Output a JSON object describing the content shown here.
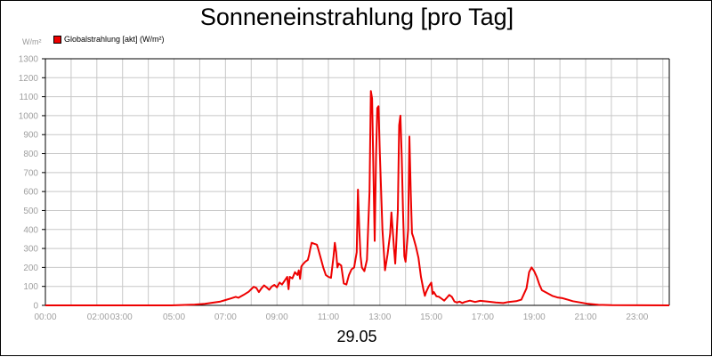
{
  "chart_data": {
    "type": "line",
    "title": "Sonneneinstrahlung [pro Tag]",
    "y_unit": "W/m²",
    "date": "29.05",
    "ylim": [
      0,
      1300
    ],
    "xlim": [
      0,
      24.25
    ],
    "grid": true,
    "legend_position": "top-left",
    "y_ticks": [
      0,
      100,
      200,
      300,
      400,
      500,
      600,
      700,
      800,
      900,
      1000,
      1100,
      1200,
      1300
    ],
    "x_ticks": [
      {
        "value": 0,
        "label": "00:00"
      },
      {
        "value": 2,
        "label": "02:00"
      },
      {
        "value": 3,
        "label": "03:00"
      },
      {
        "value": 5,
        "label": "05:00"
      },
      {
        "value": 7,
        "label": "07:00"
      },
      {
        "value": 9,
        "label": "09:00"
      },
      {
        "value": 11,
        "label": "11:00"
      },
      {
        "value": 13,
        "label": "13:00"
      },
      {
        "value": 15,
        "label": "15:00"
      },
      {
        "value": 17,
        "label": "17:00"
      },
      {
        "value": 19,
        "label": "19:00"
      },
      {
        "value": 21,
        "label": "21:00"
      },
      {
        "value": 23,
        "label": "23:00"
      }
    ],
    "series": [
      {
        "name": "Globalstrahlung [akt] (W/m²)",
        "color": "#ee0000",
        "points": [
          [
            0,
            0
          ],
          [
            4.9,
            0
          ],
          [
            5.3,
            2
          ],
          [
            5.8,
            4
          ],
          [
            6.2,
            8
          ],
          [
            6.5,
            14
          ],
          [
            6.8,
            20
          ],
          [
            7.0,
            28
          ],
          [
            7.2,
            36
          ],
          [
            7.4,
            45
          ],
          [
            7.5,
            40
          ],
          [
            7.7,
            55
          ],
          [
            7.9,
            72
          ],
          [
            8.0,
            85
          ],
          [
            8.1,
            98
          ],
          [
            8.2,
            92
          ],
          [
            8.3,
            70
          ],
          [
            8.4,
            90
          ],
          [
            8.5,
            105
          ],
          [
            8.6,
            95
          ],
          [
            8.7,
            82
          ],
          [
            8.8,
            100
          ],
          [
            8.9,
            108
          ],
          [
            9.0,
            95
          ],
          [
            9.1,
            120
          ],
          [
            9.2,
            110
          ],
          [
            9.3,
            130
          ],
          [
            9.4,
            150
          ],
          [
            9.45,
            85
          ],
          [
            9.5,
            150
          ],
          [
            9.6,
            142
          ],
          [
            9.7,
            175
          ],
          [
            9.8,
            160
          ],
          [
            9.85,
            185
          ],
          [
            9.9,
            140
          ],
          [
            9.95,
            205
          ],
          [
            10.0,
            215
          ],
          [
            10.1,
            230
          ],
          [
            10.2,
            240
          ],
          [
            10.25,
            265
          ],
          [
            10.3,
            300
          ],
          [
            10.35,
            330
          ],
          [
            10.45,
            325
          ],
          [
            10.55,
            320
          ],
          [
            10.6,
            300
          ],
          [
            10.7,
            250
          ],
          [
            10.8,
            200
          ],
          [
            10.9,
            160
          ],
          [
            11.0,
            150
          ],
          [
            11.1,
            145
          ],
          [
            11.2,
            260
          ],
          [
            11.25,
            330
          ],
          [
            11.3,
            280
          ],
          [
            11.35,
            200
          ],
          [
            11.4,
            220
          ],
          [
            11.5,
            210
          ],
          [
            11.6,
            115
          ],
          [
            11.7,
            110
          ],
          [
            11.8,
            160
          ],
          [
            11.9,
            190
          ],
          [
            12.0,
            200
          ],
          [
            12.1,
            280
          ],
          [
            12.15,
            610
          ],
          [
            12.2,
            400
          ],
          [
            12.25,
            260
          ],
          [
            12.3,
            200
          ],
          [
            12.4,
            180
          ],
          [
            12.5,
            240
          ],
          [
            12.6,
            600
          ],
          [
            12.65,
            1130
          ],
          [
            12.7,
            1090
          ],
          [
            12.75,
            700
          ],
          [
            12.8,
            340
          ],
          [
            12.85,
            780
          ],
          [
            12.9,
            1040
          ],
          [
            12.95,
            1050
          ],
          [
            13.0,
            800
          ],
          [
            13.1,
            400
          ],
          [
            13.2,
            185
          ],
          [
            13.3,
            270
          ],
          [
            13.4,
            380
          ],
          [
            13.45,
            490
          ],
          [
            13.5,
            400
          ],
          [
            13.55,
            300
          ],
          [
            13.6,
            220
          ],
          [
            13.7,
            500
          ],
          [
            13.75,
            950
          ],
          [
            13.8,
            1000
          ],
          [
            13.85,
            780
          ],
          [
            13.9,
            500
          ],
          [
            13.95,
            260
          ],
          [
            14.0,
            230
          ],
          [
            14.1,
            400
          ],
          [
            14.15,
            890
          ],
          [
            14.2,
            600
          ],
          [
            14.25,
            380
          ],
          [
            14.3,
            360
          ],
          [
            14.4,
            310
          ],
          [
            14.5,
            250
          ],
          [
            14.6,
            150
          ],
          [
            14.7,
            80
          ],
          [
            14.75,
            50
          ],
          [
            14.8,
            70
          ],
          [
            14.9,
            100
          ],
          [
            15.0,
            120
          ],
          [
            15.05,
            60
          ],
          [
            15.1,
            70
          ],
          [
            15.2,
            48
          ],
          [
            15.3,
            45
          ],
          [
            15.4,
            35
          ],
          [
            15.5,
            25
          ],
          [
            15.6,
            40
          ],
          [
            15.7,
            55
          ],
          [
            15.8,
            45
          ],
          [
            15.9,
            20
          ],
          [
            16.0,
            15
          ],
          [
            16.1,
            20
          ],
          [
            16.2,
            12
          ],
          [
            16.3,
            18
          ],
          [
            16.5,
            25
          ],
          [
            16.7,
            18
          ],
          [
            16.9,
            24
          ],
          [
            17.2,
            20
          ],
          [
            17.5,
            15
          ],
          [
            17.8,
            12
          ],
          [
            18.0,
            18
          ],
          [
            18.3,
            22
          ],
          [
            18.5,
            30
          ],
          [
            18.6,
            60
          ],
          [
            18.7,
            90
          ],
          [
            18.8,
            175
          ],
          [
            18.9,
            200
          ],
          [
            19.0,
            180
          ],
          [
            19.1,
            150
          ],
          [
            19.2,
            110
          ],
          [
            19.3,
            80
          ],
          [
            19.5,
            65
          ],
          [
            19.7,
            50
          ],
          [
            19.9,
            42
          ],
          [
            20.1,
            38
          ],
          [
            20.3,
            30
          ],
          [
            20.5,
            22
          ],
          [
            20.8,
            15
          ],
          [
            21.1,
            8
          ],
          [
            21.5,
            3
          ],
          [
            22.0,
            1
          ],
          [
            24.25,
            0
          ]
        ]
      }
    ]
  },
  "legend": {
    "swatch_color": "#ee0000"
  }
}
